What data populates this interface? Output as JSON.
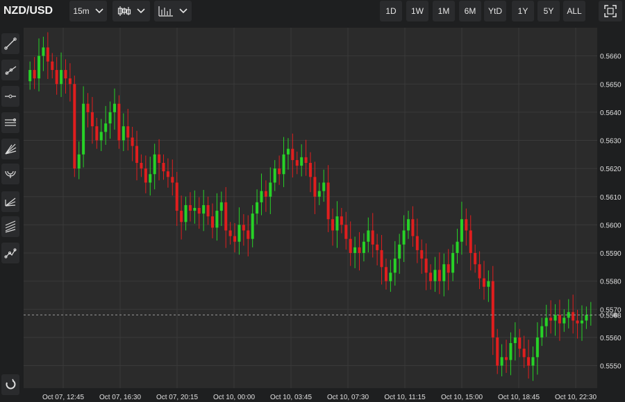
{
  "header": {
    "symbol": "NZD/USD",
    "interval_label": "15m",
    "chart_type_icon": "candlestick-icon",
    "indicators_icon": "indicators-icon",
    "ranges": [
      "1D",
      "1W",
      "1M",
      "6M",
      "YtD",
      "1Y",
      "5Y",
      "ALL"
    ],
    "fullscreen_icon": "fullscreen-icon"
  },
  "toolbar": {
    "tools": [
      "trend-line-icon",
      "ray-icon",
      "horizontal-line-icon",
      "parallel-channel-icon",
      "fan-icon",
      "arc-icon",
      "pitchfork-icon",
      "fibonacci-icon",
      "path-icon"
    ],
    "magnet_icon": "magnet-icon"
  },
  "colors": {
    "up": "#27d227",
    "down": "#e01e1e",
    "background": "#2b2b2b",
    "grid": "#3a3a3a"
  },
  "chart_data": {
    "type": "candlestick",
    "title": "",
    "ylim": [
      0.5542,
      0.567
    ],
    "y_ticks": [
      "0.5550",
      "0.5560",
      "0.5570",
      "0.5580",
      "0.5590",
      "0.5600",
      "0.5610",
      "0.5620",
      "0.5630",
      "0.5640",
      "0.5650",
      "0.5660"
    ],
    "x_tick_labels": [
      "Oct 07, 12:45",
      "Oct 07, 16:30",
      "Oct 07, 20:15",
      "Oct 10, 00:00",
      "Oct 10, 03:45",
      "Oct 10, 07:30",
      "Oct 10, 11:15",
      "Oct 10, 15:00",
      "Oct 10, 18:45",
      "Oct 10, 22:30"
    ],
    "last_price": "0.5568",
    "last_price_value": 0.5568,
    "grid": true,
    "closes": [
      0.5655,
      0.5652,
      0.566,
      0.5663,
      0.5658,
      0.5655,
      0.565,
      0.5655,
      0.5652,
      0.565,
      0.562,
      0.5625,
      0.5643,
      0.564,
      0.5635,
      0.563,
      0.5633,
      0.5636,
      0.564,
      0.5643,
      0.563,
      0.5635,
      0.5631,
      0.5628,
      0.5622,
      0.562,
      0.5615,
      0.5618,
      0.5625,
      0.5622,
      0.5619,
      0.5617,
      0.5615,
      0.5605,
      0.5601,
      0.5607,
      0.5605,
      0.5606,
      0.5604,
      0.5607,
      0.5603,
      0.5599,
      0.5605,
      0.5608,
      0.5598,
      0.5596,
      0.5594,
      0.56,
      0.5598,
      0.5595,
      0.5604,
      0.5608,
      0.5612,
      0.561,
      0.5615,
      0.562,
      0.5618,
      0.5625,
      0.5627,
      0.5623,
      0.5621,
      0.5624,
      0.5622,
      0.5617,
      0.561,
      0.5612,
      0.5615,
      0.5602,
      0.5598,
      0.5603,
      0.56,
      0.5595,
      0.559,
      0.5592,
      0.559,
      0.5594,
      0.5598,
      0.5593,
      0.5591,
      0.5585,
      0.558,
      0.5583,
      0.5588,
      0.5593,
      0.5598,
      0.5602,
      0.5596,
      0.5591,
      0.5588,
      0.5583,
      0.558,
      0.5584,
      0.558,
      0.5586,
      0.5583,
      0.559,
      0.5594,
      0.5602,
      0.5598,
      0.559,
      0.5586,
      0.5581,
      0.5578,
      0.558,
      0.556,
      0.555,
      0.5553,
      0.5552,
      0.5558,
      0.556,
      0.5556,
      0.5553,
      0.555,
      0.5553,
      0.556,
      0.5564,
      0.5567,
      0.5566,
      0.5568,
      0.5565,
      0.5567,
      0.5569,
      0.5566,
      0.5565,
      0.5566,
      0.5568,
      0.5568
    ]
  }
}
